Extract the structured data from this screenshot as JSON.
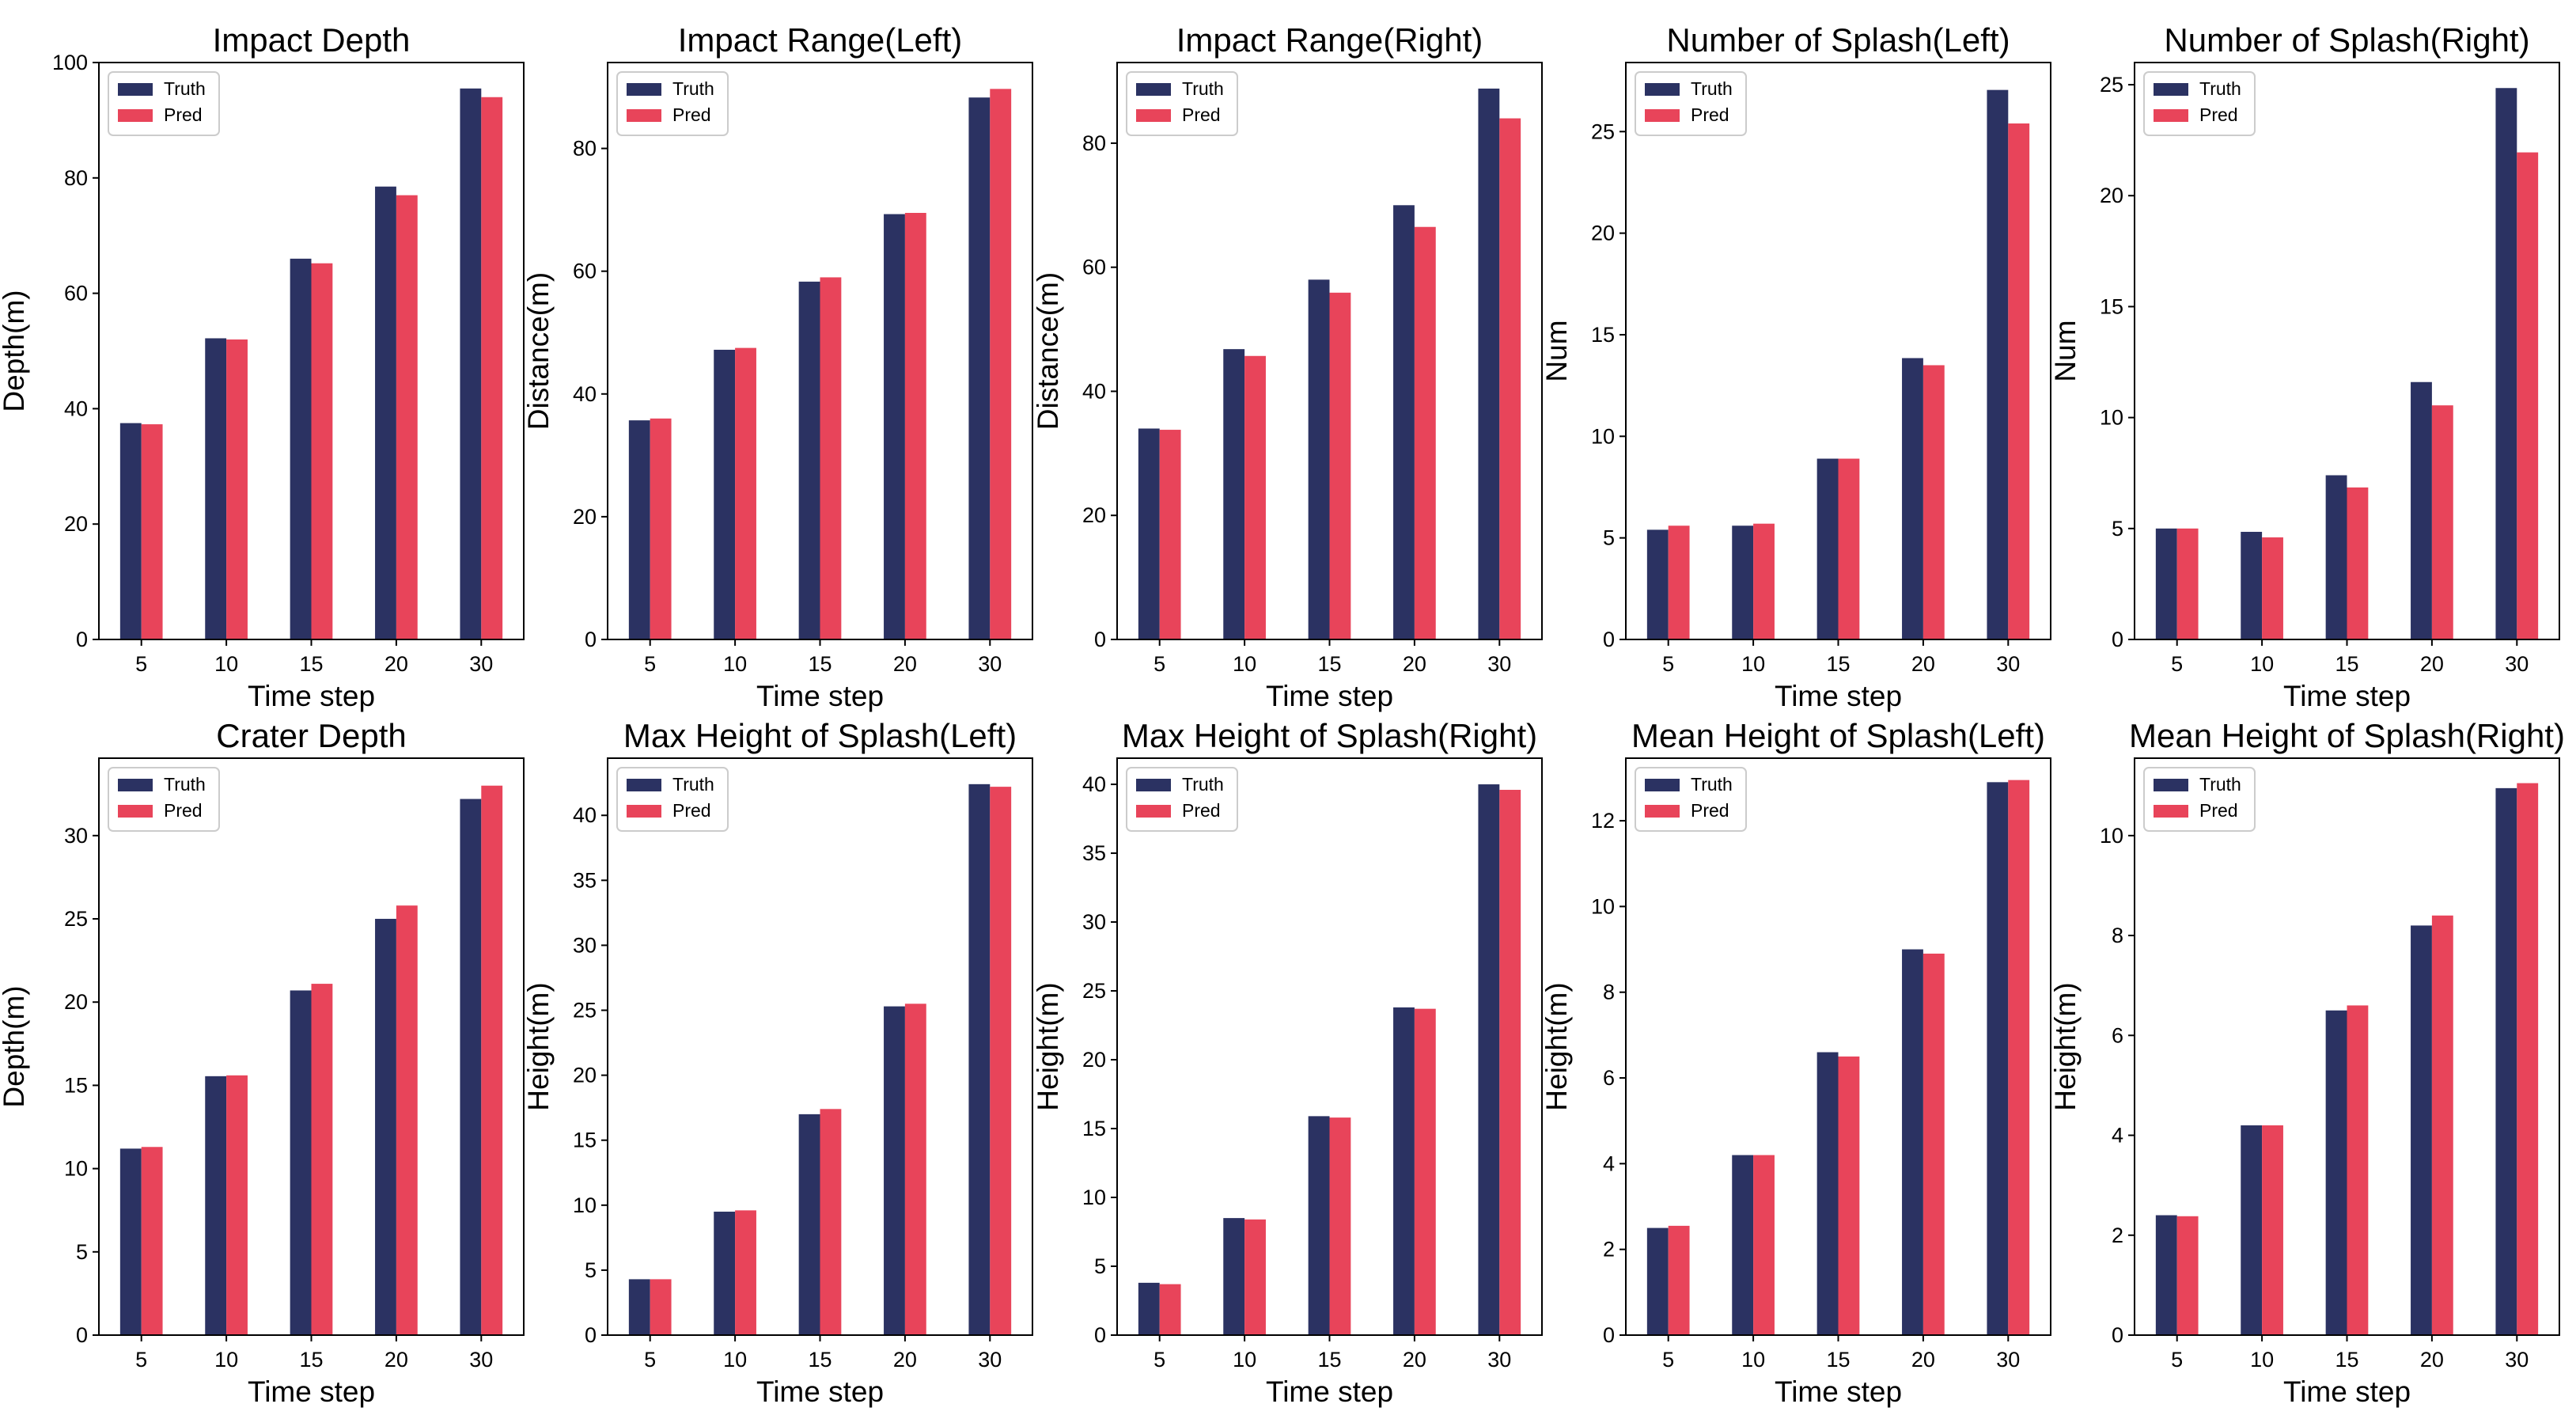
{
  "colors": {
    "truth": "#2b3262",
    "pred": "#e8445a"
  },
  "chart_data": [
    {
      "type": "bar",
      "title": "Impact Depth",
      "xlabel": "Time step",
      "ylabel": "Depth(m)",
      "categories": [
        "5",
        "10",
        "15",
        "20",
        "30"
      ],
      "ylim": [
        0,
        100
      ],
      "yticks": [
        0,
        20,
        40,
        60,
        80,
        100
      ],
      "legend": "top-left",
      "series": [
        {
          "name": "Truth",
          "values": [
            37.5,
            52.2,
            66.0,
            78.5,
            95.5
          ]
        },
        {
          "name": "Pred",
          "values": [
            37.3,
            52.0,
            65.2,
            77.0,
            94.0
          ]
        }
      ]
    },
    {
      "type": "bar",
      "title": "Impact Range(Left)",
      "xlabel": "Time step",
      "ylabel": "Distance(m)",
      "categories": [
        "5",
        "10",
        "15",
        "20",
        "30"
      ],
      "ylim": [
        0,
        94
      ],
      "yticks": [
        0,
        20,
        40,
        60,
        80
      ],
      "legend": "top-left",
      "series": [
        {
          "name": "Truth",
          "values": [
            35.7,
            47.2,
            58.3,
            69.3,
            88.3
          ]
        },
        {
          "name": "Pred",
          "values": [
            36.0,
            47.5,
            59.0,
            69.5,
            89.7
          ]
        }
      ]
    },
    {
      "type": "bar",
      "title": "Impact Range(Right)",
      "xlabel": "Time step",
      "ylabel": "Distance(m)",
      "categories": [
        "5",
        "10",
        "15",
        "20",
        "30"
      ],
      "ylim": [
        0,
        93
      ],
      "yticks": [
        0,
        20,
        40,
        60,
        80
      ],
      "legend": "top-left",
      "series": [
        {
          "name": "Truth",
          "values": [
            34.0,
            46.8,
            58.0,
            70.0,
            88.8
          ]
        },
        {
          "name": "Pred",
          "values": [
            33.8,
            45.7,
            55.9,
            66.5,
            84.0
          ]
        }
      ]
    },
    {
      "type": "bar",
      "title": "Number of Splash(Left)",
      "xlabel": "Time step",
      "ylabel": "Num",
      "categories": [
        "5",
        "10",
        "15",
        "20",
        "30"
      ],
      "ylim": [
        0,
        28.4
      ],
      "yticks": [
        0,
        5,
        10,
        15,
        20,
        25
      ],
      "legend": "top-left",
      "series": [
        {
          "name": "Truth",
          "values": [
            5.4,
            5.6,
            8.9,
            13.85,
            27.05
          ]
        },
        {
          "name": "Pred",
          "values": [
            5.6,
            5.7,
            8.9,
            13.5,
            25.4
          ]
        }
      ]
    },
    {
      "type": "bar",
      "title": "Number of Splash(Right)",
      "xlabel": "Time step",
      "ylabel": "Num",
      "categories": [
        "5",
        "10",
        "15",
        "20",
        "30"
      ],
      "ylim": [
        0,
        26
      ],
      "yticks": [
        0,
        5,
        10,
        15,
        20,
        25
      ],
      "legend": "top-left",
      "series": [
        {
          "name": "Truth",
          "values": [
            5.0,
            4.85,
            7.4,
            11.6,
            24.85
          ]
        },
        {
          "name": "Pred",
          "values": [
            5.0,
            4.6,
            6.85,
            10.55,
            21.95
          ]
        }
      ]
    },
    {
      "type": "bar",
      "title": "Crater Depth",
      "xlabel": "Time step",
      "ylabel": "Depth(m)",
      "categories": [
        "5",
        "10",
        "15",
        "20",
        "30"
      ],
      "ylim": [
        0,
        34.65
      ],
      "yticks": [
        0,
        5,
        10,
        15,
        20,
        25,
        30
      ],
      "legend": "top-left",
      "series": [
        {
          "name": "Truth",
          "values": [
            11.2,
            15.55,
            20.7,
            25.0,
            32.2
          ]
        },
        {
          "name": "Pred",
          "values": [
            11.3,
            15.6,
            21.1,
            25.8,
            33.0
          ]
        }
      ]
    },
    {
      "type": "bar",
      "title": "Max Height of Splash(Left)",
      "xlabel": "Time step",
      "ylabel": "Height(m)",
      "categories": [
        "5",
        "10",
        "15",
        "20",
        "30"
      ],
      "ylim": [
        0,
        44.4
      ],
      "yticks": [
        0,
        5,
        10,
        15,
        20,
        25,
        30,
        35,
        40
      ],
      "legend": "top-left",
      "series": [
        {
          "name": "Truth",
          "values": [
            4.3,
            9.5,
            17.0,
            25.3,
            42.4
          ]
        },
        {
          "name": "Pred",
          "values": [
            4.3,
            9.6,
            17.4,
            25.5,
            42.2
          ]
        }
      ]
    },
    {
      "type": "bar",
      "title": "Max Height of Splash(Right)",
      "xlabel": "Time step",
      "ylabel": "Height(m)",
      "categories": [
        "5",
        "10",
        "15",
        "20",
        "30"
      ],
      "ylim": [
        0,
        41.9
      ],
      "yticks": [
        0,
        5,
        10,
        15,
        20,
        25,
        30,
        35,
        40
      ],
      "legend": "top-left",
      "series": [
        {
          "name": "Truth",
          "values": [
            3.8,
            8.5,
            15.9,
            23.8,
            40.0
          ]
        },
        {
          "name": "Pred",
          "values": [
            3.7,
            8.4,
            15.8,
            23.7,
            39.6
          ]
        }
      ]
    },
    {
      "type": "bar",
      "title": "Mean Height of Splash(Left)",
      "xlabel": "Time step",
      "ylabel": "Height(m)",
      "categories": [
        "5",
        "10",
        "15",
        "20",
        "30"
      ],
      "ylim": [
        0,
        13.46
      ],
      "yticks": [
        0,
        2,
        4,
        6,
        8,
        10,
        12
      ],
      "legend": "top-left",
      "series": [
        {
          "name": "Truth",
          "values": [
            2.5,
            4.2,
            6.6,
            9.0,
            12.9
          ]
        },
        {
          "name": "Pred",
          "values": [
            2.55,
            4.2,
            6.5,
            8.9,
            12.95
          ]
        }
      ]
    },
    {
      "type": "bar",
      "title": "Mean Height of Splash(Right)",
      "xlabel": "Time step",
      "ylabel": "Height(m)",
      "categories": [
        "5",
        "10",
        "15",
        "20",
        "30"
      ],
      "ylim": [
        0,
        11.55
      ],
      "yticks": [
        0,
        2,
        4,
        6,
        8,
        10
      ],
      "legend": "top-left",
      "series": [
        {
          "name": "Truth",
          "values": [
            2.4,
            4.2,
            6.5,
            8.2,
            10.95
          ]
        },
        {
          "name": "Pred",
          "values": [
            2.38,
            4.2,
            6.6,
            8.4,
            11.05
          ]
        }
      ]
    }
  ]
}
